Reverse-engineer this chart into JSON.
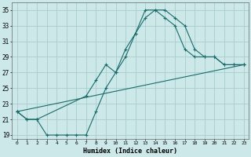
{
  "xlabel": "Humidex (Indice chaleur)",
  "ylabel": "",
  "bg_color": "#cce8e8",
  "grid_color": "#aacccc",
  "line_color": "#1a6b6b",
  "xlim": [
    -0.5,
    23.5
  ],
  "ylim": [
    18.5,
    36
  ],
  "xticks": [
    0,
    1,
    2,
    3,
    4,
    5,
    6,
    7,
    8,
    9,
    10,
    11,
    12,
    13,
    14,
    15,
    16,
    17,
    18,
    19,
    20,
    21,
    22,
    23
  ],
  "yticks": [
    19,
    21,
    23,
    25,
    27,
    29,
    31,
    33,
    35
  ],
  "line1_x": [
    0,
    1,
    2,
    3,
    4,
    5,
    6,
    7,
    8,
    9,
    10,
    11,
    12,
    13,
    14,
    15,
    16,
    17,
    18,
    19,
    20,
    21,
    22,
    23
  ],
  "line1_y": [
    22,
    21,
    21,
    19,
    19,
    19,
    19,
    19,
    22,
    25,
    27,
    30,
    32,
    34,
    35,
    35,
    34,
    33,
    30,
    29,
    29,
    28,
    28,
    28
  ],
  "line2_x": [
    0,
    1,
    2,
    7,
    8,
    9,
    10,
    11,
    12,
    13,
    14,
    15,
    16,
    17,
    18,
    19,
    20,
    21,
    22,
    23
  ],
  "line2_y": [
    22,
    21,
    21,
    24,
    26,
    28,
    27,
    29,
    32,
    35,
    35,
    34,
    33,
    30,
    29,
    29,
    29,
    28,
    28,
    28
  ],
  "line3_x": [
    0,
    23
  ],
  "line3_y": [
    22,
    28
  ]
}
